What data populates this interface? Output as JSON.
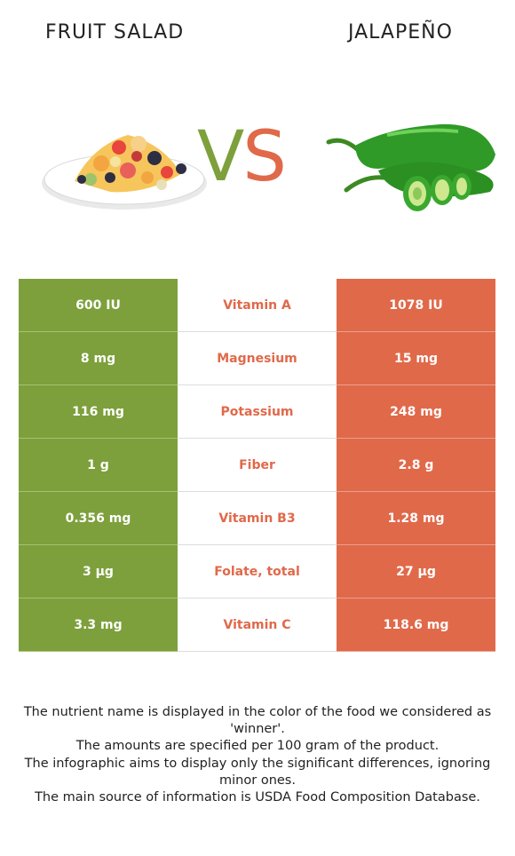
{
  "header": {
    "left_food": "FRUIT SALAD",
    "right_food": "JALAPEÑO",
    "vs_v": "V",
    "vs_s": "S"
  },
  "colors": {
    "winner_left": "#7da03c",
    "winner_right": "#e0694a"
  },
  "rows": [
    {
      "nutrient": "Vitamin A",
      "left": "600 IU",
      "right": "1078 IU"
    },
    {
      "nutrient": "Magnesium",
      "left": "8 mg",
      "right": "15 mg"
    },
    {
      "nutrient": "Potassium",
      "left": "116 mg",
      "right": "248 mg"
    },
    {
      "nutrient": "Fiber",
      "left": "1 g",
      "right": "2.8 g"
    },
    {
      "nutrient": "Vitamin B3",
      "left": "0.356 mg",
      "right": "1.28 mg"
    },
    {
      "nutrient": "Folate, total",
      "left": "3 µg",
      "right": "27 µg"
    },
    {
      "nutrient": "Vitamin C",
      "left": "3.3 mg",
      "right": "118.6 mg"
    }
  ],
  "footer": {
    "line1": "The nutrient name is displayed in the color of the food we considered as 'winner'.",
    "line2": "The amounts are specified per 100 gram of the product.",
    "line3": "The infographic aims to display only the significant differences, ignoring minor ones.",
    "line4": "The main source of information is USDA Food Composition Database."
  }
}
